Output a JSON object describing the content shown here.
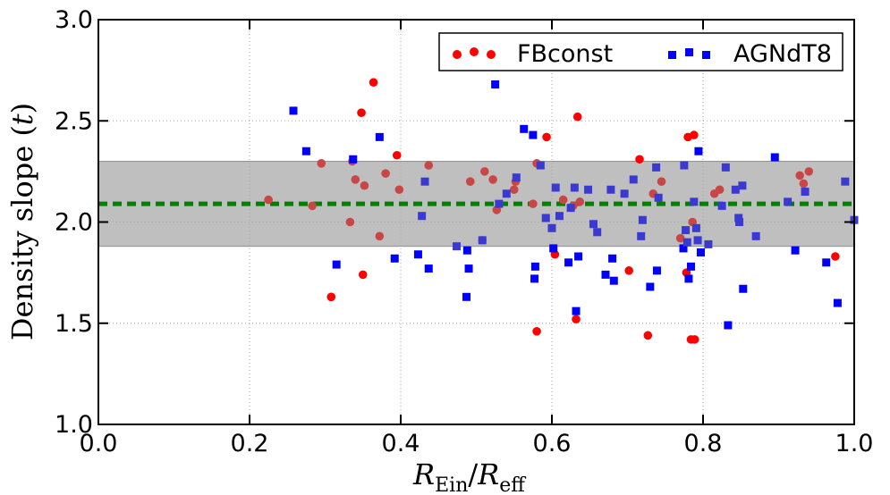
{
  "chart_data": {
    "type": "scatter",
    "title": "",
    "xlabel": {
      "main": "R",
      "sub_num": "Ein",
      "sep": "/",
      "main2": "R",
      "sub_den": "eff"
    },
    "ylabel": {
      "text": "Density slope (",
      "var": "t",
      "close": ")"
    },
    "xlim": [
      0.0,
      1.0
    ],
    "ylim": [
      1.0,
      3.0
    ],
    "xticks": [
      0.0,
      0.2,
      0.4,
      0.6,
      0.8,
      1.0
    ],
    "xtick_labels": [
      "0.0",
      "0.2",
      "0.4",
      "0.6",
      "0.8",
      "1.0"
    ],
    "yticks": [
      1.0,
      1.5,
      2.0,
      2.5,
      3.0
    ],
    "ytick_labels": [
      "1.0",
      "1.5",
      "2.0",
      "2.5",
      "3.0"
    ],
    "grid": true,
    "legend_position": "top-right",
    "band": {
      "lower": 1.88,
      "upper": 2.3,
      "color": "#bfbfbf"
    },
    "reference_line": {
      "y": 2.09,
      "color": "#008000",
      "style": "dashed"
    },
    "series": [
      {
        "name": "FBconst",
        "marker": "circle",
        "color": "#ff0000",
        "points": [
          [
            0.225,
            2.11
          ],
          [
            0.283,
            2.08
          ],
          [
            0.295,
            2.29
          ],
          [
            0.308,
            1.63
          ],
          [
            0.333,
            2.0
          ],
          [
            0.336,
            2.3
          ],
          [
            0.34,
            2.21
          ],
          [
            0.348,
            2.54
          ],
          [
            0.35,
            1.74
          ],
          [
            0.352,
            2.18
          ],
          [
            0.364,
            2.69
          ],
          [
            0.372,
            1.93
          ],
          [
            0.38,
            2.24
          ],
          [
            0.395,
            2.33
          ],
          [
            0.398,
            2.16
          ],
          [
            0.437,
            2.28
          ],
          [
            0.492,
            2.2
          ],
          [
            0.508,
            1.91
          ],
          [
            0.511,
            2.25
          ],
          [
            0.522,
            2.21
          ],
          [
            0.527,
            2.06
          ],
          [
            0.55,
            2.16
          ],
          [
            0.552,
            2.2
          ],
          [
            0.575,
            2.09
          ],
          [
            0.58,
            1.46
          ],
          [
            0.58,
            2.29
          ],
          [
            0.593,
            2.42
          ],
          [
            0.604,
            1.84
          ],
          [
            0.615,
            2.11
          ],
          [
            0.628,
            2.08
          ],
          [
            0.632,
            1.52
          ],
          [
            0.634,
            2.52
          ],
          [
            0.637,
            2.1
          ],
          [
            0.702,
            1.76
          ],
          [
            0.716,
            2.31
          ],
          [
            0.727,
            1.44
          ],
          [
            0.734,
            2.14
          ],
          [
            0.745,
            2.2
          ],
          [
            0.77,
            1.92
          ],
          [
            0.778,
            1.75
          ],
          [
            0.78,
            2.42
          ],
          [
            0.784,
            1.42
          ],
          [
            0.786,
            2.0
          ],
          [
            0.788,
            2.43
          ],
          [
            0.789,
            1.42
          ],
          [
            0.815,
            2.14
          ],
          [
            0.822,
            2.16
          ],
          [
            0.928,
            2.23
          ],
          [
            0.933,
            2.19
          ],
          [
            0.94,
            2.25
          ],
          [
            0.975,
            1.83
          ]
        ]
      },
      {
        "name": "AGNdT8",
        "marker": "square",
        "color": "#0000ff",
        "points": [
          [
            0.258,
            2.55
          ],
          [
            0.275,
            2.35
          ],
          [
            0.315,
            1.79
          ],
          [
            0.337,
            2.31
          ],
          [
            0.372,
            2.42
          ],
          [
            0.392,
            1.82
          ],
          [
            0.423,
            1.84
          ],
          [
            0.428,
            2.03
          ],
          [
            0.432,
            2.2
          ],
          [
            0.437,
            1.77
          ],
          [
            0.474,
            1.88
          ],
          [
            0.487,
            1.63
          ],
          [
            0.488,
            1.86
          ],
          [
            0.49,
            1.77
          ],
          [
            0.508,
            1.91
          ],
          [
            0.525,
            2.68
          ],
          [
            0.53,
            2.09
          ],
          [
            0.54,
            2.14
          ],
          [
            0.553,
            2.22
          ],
          [
            0.563,
            2.46
          ],
          [
            0.575,
            2.43
          ],
          [
            0.577,
            1.72
          ],
          [
            0.578,
            1.78
          ],
          [
            0.585,
            2.28
          ],
          [
            0.592,
            2.02
          ],
          [
            0.6,
            1.97
          ],
          [
            0.602,
            1.87
          ],
          [
            0.605,
            2.17
          ],
          [
            0.61,
            2.03
          ],
          [
            0.622,
            1.8
          ],
          [
            0.625,
            2.07
          ],
          [
            0.63,
            2.17
          ],
          [
            0.632,
            1.56
          ],
          [
            0.635,
            1.83
          ],
          [
            0.648,
            2.16
          ],
          [
            0.655,
            1.99
          ],
          [
            0.66,
            1.95
          ],
          [
            0.671,
            1.74
          ],
          [
            0.678,
            2.16
          ],
          [
            0.68,
            1.82
          ],
          [
            0.682,
            1.71
          ],
          [
            0.696,
            2.14
          ],
          [
            0.708,
            2.21
          ],
          [
            0.718,
            1.93
          ],
          [
            0.72,
            2.01
          ],
          [
            0.73,
            1.68
          ],
          [
            0.738,
            2.27
          ],
          [
            0.739,
            1.76
          ],
          [
            0.741,
            2.12
          ],
          [
            0.774,
            1.87
          ],
          [
            0.775,
            2.28
          ],
          [
            0.777,
            1.96
          ],
          [
            0.779,
            1.9
          ],
          [
            0.781,
            1.72
          ],
          [
            0.784,
            1.78
          ],
          [
            0.788,
            2.1
          ],
          [
            0.791,
            1.97
          ],
          [
            0.793,
            1.91
          ],
          [
            0.794,
            2.35
          ],
          [
            0.797,
            1.85
          ],
          [
            0.807,
            1.89
          ],
          [
            0.825,
            2.08
          ],
          [
            0.83,
            2.27
          ],
          [
            0.833,
            1.49
          ],
          [
            0.843,
            2.16
          ],
          [
            0.847,
            2.02
          ],
          [
            0.848,
            2.0
          ],
          [
            0.852,
            2.18
          ],
          [
            0.853,
            1.67
          ],
          [
            0.87,
            1.93
          ],
          [
            0.895,
            2.32
          ],
          [
            0.912,
            2.1
          ],
          [
            0.922,
            1.86
          ],
          [
            0.935,
            2.15
          ],
          [
            0.963,
            1.8
          ],
          [
            0.978,
            1.6
          ],
          [
            0.988,
            2.2
          ],
          [
            1.0,
            2.01
          ]
        ]
      }
    ]
  }
}
